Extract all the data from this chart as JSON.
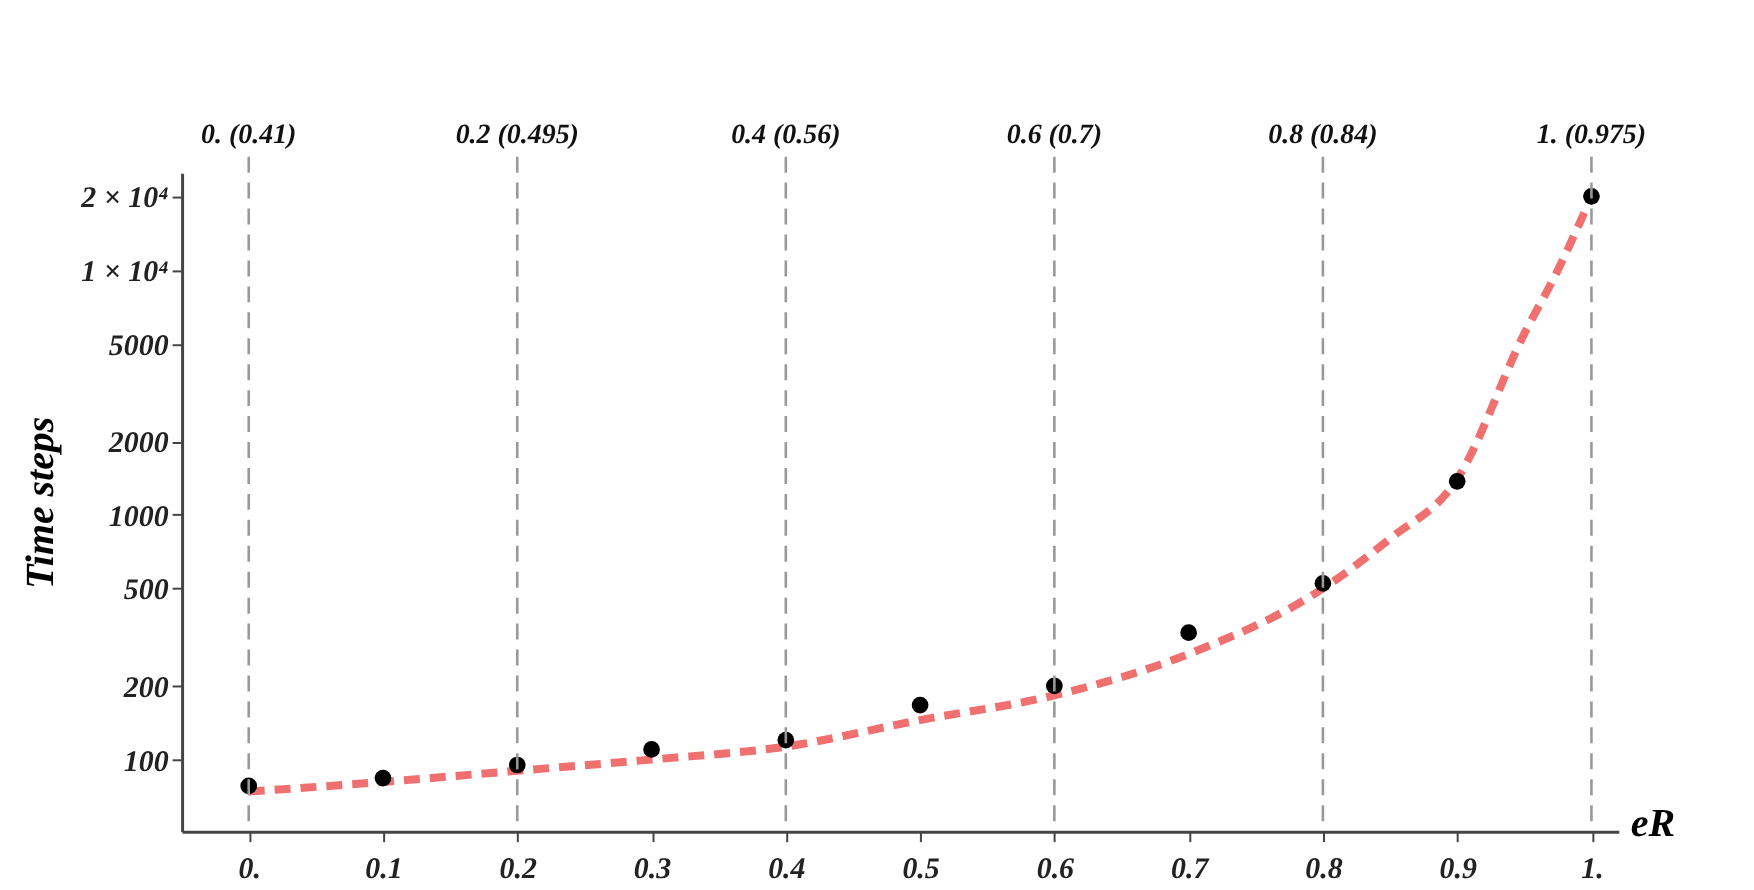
{
  "chart_data": {
    "type": "scatter",
    "xlabel": "eR",
    "ylabel": "Time steps",
    "log": "y",
    "xlim": [
      -0.05,
      1.02
    ],
    "ylim": [
      51,
      25000
    ],
    "xticks": [
      {
        "value": 0,
        "label": "0."
      },
      0.1,
      0.2,
      0.3,
      0.4,
      0.5,
      0.6,
      0.7,
      0.8,
      0.9,
      {
        "value": 1,
        "label": "1."
      }
    ],
    "yticks": [
      100,
      200,
      500,
      1000,
      2000,
      5000,
      {
        "value": 10000,
        "label": "1 × 10⁴"
      },
      {
        "value": 20000,
        "label": "2 × 10⁴"
      }
    ],
    "x": [
      0,
      0.1,
      0.2,
      0.3,
      0.4,
      0.5,
      0.6,
      0.7,
      0.8,
      0.9,
      1.0
    ],
    "series": [
      {
        "color": "#000000",
        "marker": "circle",
        "values": [
          78,
          84,
          95,
          110,
          120,
          167,
          200,
          330,
          525,
          1370,
          20000
        ]
      },
      {
        "type": "line",
        "color": "#f07070",
        "line_style": "dashed",
        "marker": "none",
        "x": [
          0,
          0.1,
          0.2,
          0.3,
          0.4,
          0.5,
          0.6,
          0.7,
          0.8,
          0.85,
          0.9,
          0.95,
          0.975,
          1.0
        ],
        "values": [
          74,
          81,
          90,
          100,
          113,
          145,
          183,
          270,
          500,
          800,
          1400,
          5500,
          10000,
          20000
        ]
      }
    ],
    "ref_lines": [
      {
        "axis": "x",
        "value": 0,
        "label": "0.  (0.41)",
        "color": "#999999",
        "line_style": "dashed"
      },
      {
        "axis": "x",
        "value": 0.2,
        "label": "0.2  (0.495)",
        "color": "#999999",
        "line_style": "dashed"
      },
      {
        "axis": "x",
        "value": 0.4,
        "label": "0.4  (0.56)",
        "color": "#999999",
        "line_style": "dashed"
      },
      {
        "axis": "x",
        "value": 0.6,
        "label": "0.6  (0.7)",
        "color": "#999999",
        "line_style": "dashed"
      },
      {
        "axis": "x",
        "value": 0.8,
        "label": "0.8  (0.84)",
        "color": "#999999",
        "line_style": "dashed"
      },
      {
        "axis": "x",
        "value": 1.0,
        "label": "1.  (0.975)",
        "color": "#999999",
        "line_style": "dashed"
      }
    ],
    "grid": false,
    "legend": false
  }
}
